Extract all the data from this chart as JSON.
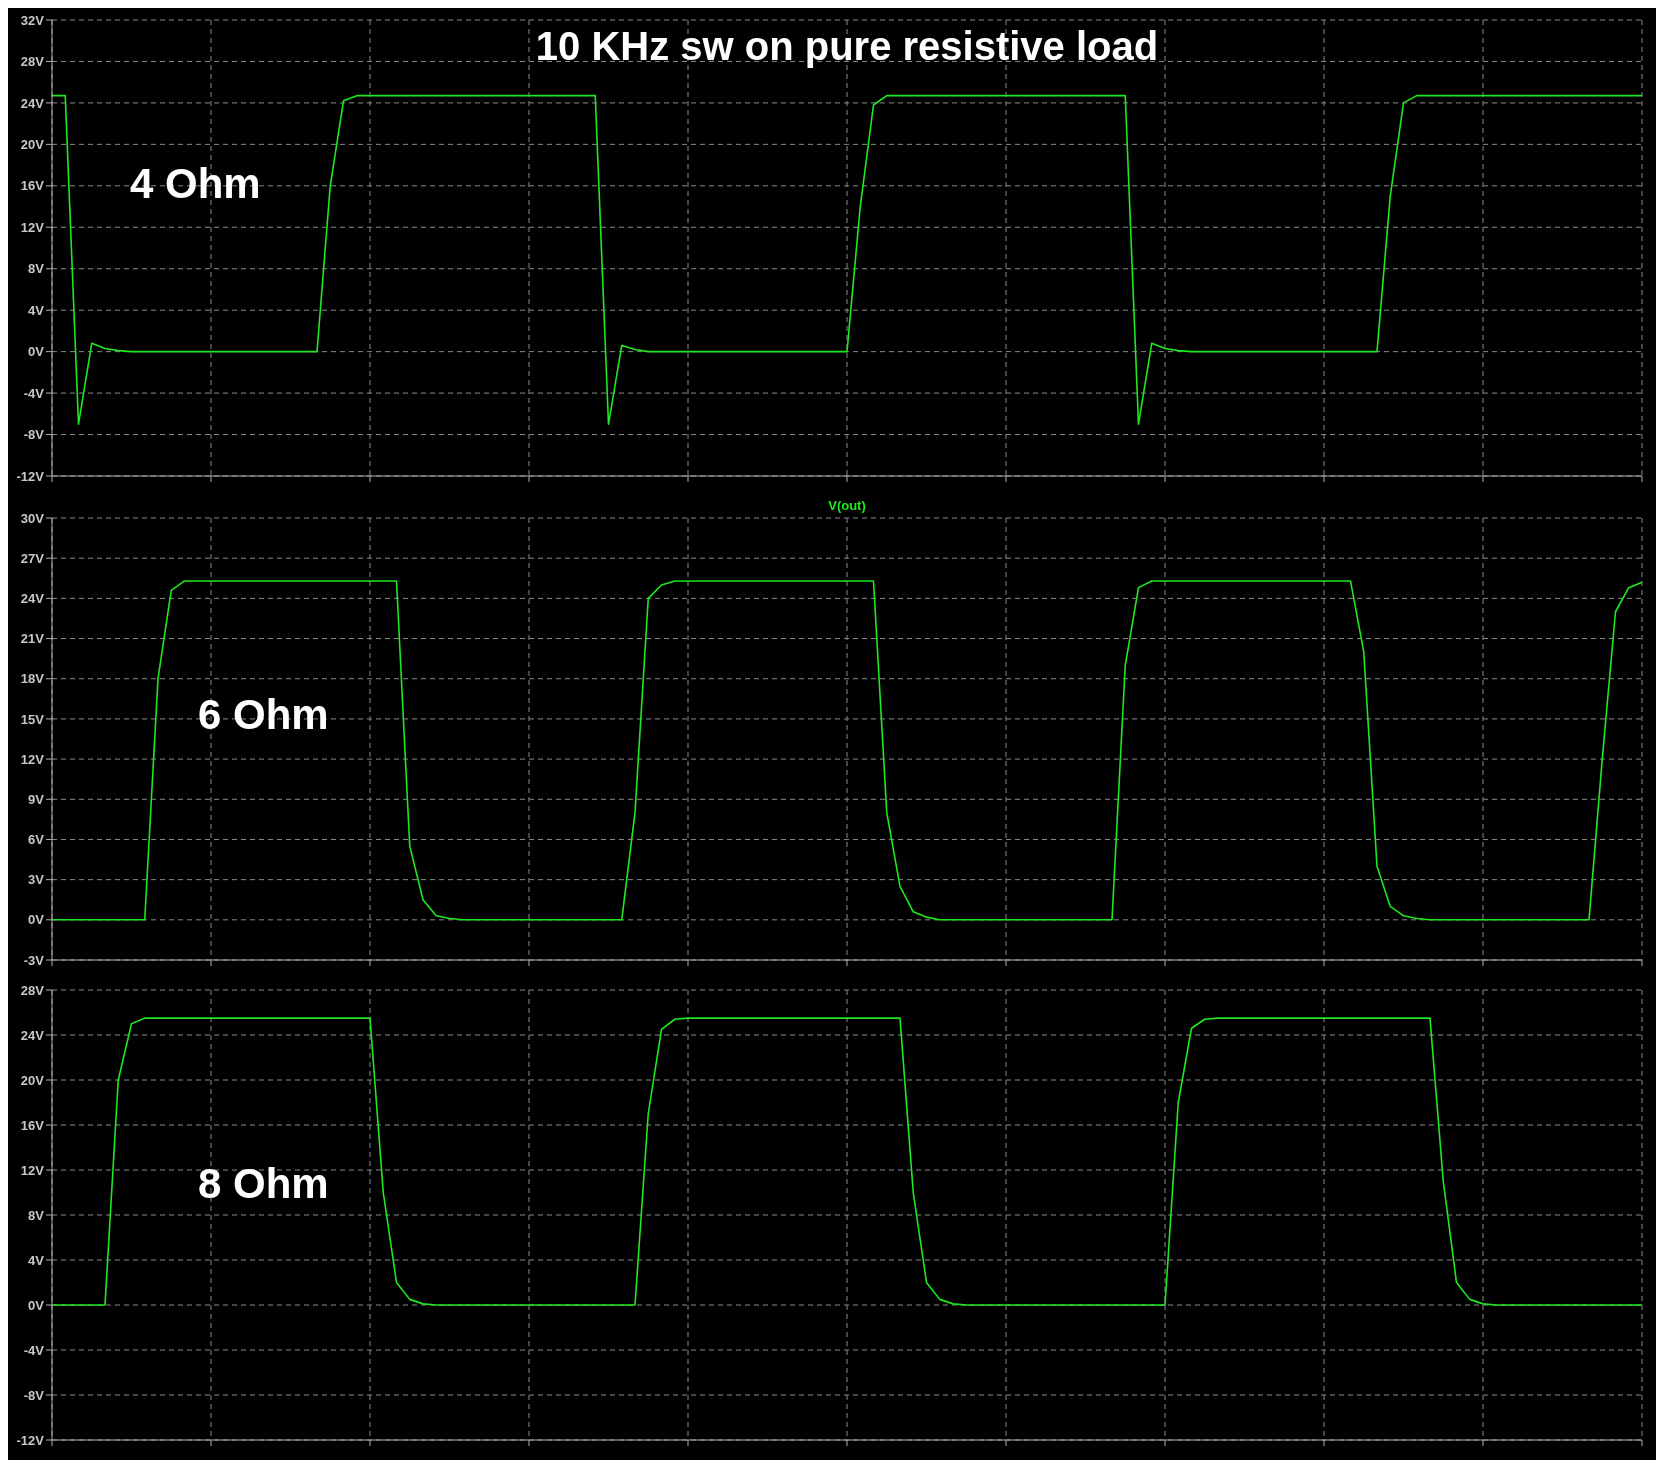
{
  "chart_data": [
    {
      "type": "line",
      "title": "10 KHz sw on pure resistive load",
      "annotations": [
        "4 Ohm"
      ],
      "grid": true,
      "tick_labels": "y",
      "categories": [
        null,
        null,
        null,
        null,
        null,
        null,
        null,
        null,
        null,
        null,
        null,
        null,
        null,
        null,
        null,
        null,
        null,
        null,
        null,
        null,
        null,
        null,
        null,
        null,
        null,
        null,
        null,
        null,
        null,
        null,
        null,
        null,
        null,
        null,
        null,
        null,
        null,
        null,
        null,
        null,
        null,
        null,
        null,
        null,
        null,
        null,
        null,
        null,
        null,
        null,
        null,
        null,
        null,
        null,
        null,
        null,
        null,
        null,
        null,
        null,
        null,
        null,
        null,
        null,
        null,
        null,
        null,
        null,
        null,
        null,
        null,
        null,
        null,
        null,
        null,
        null,
        null,
        null,
        null,
        null,
        null,
        null,
        null,
        null,
        null,
        null,
        null,
        null,
        null,
        null,
        null,
        null,
        null,
        null,
        null,
        null,
        null,
        null,
        null,
        null,
        null,
        null,
        null,
        null,
        null,
        null,
        null,
        null,
        null,
        null,
        null,
        null,
        null,
        null,
        null,
        null,
        null,
        null,
        null,
        null,
        null
      ],
      "ylim": [
        -12,
        32
      ],
      "yticks": [
        {
          "value": -12,
          "label": "-12V"
        },
        {
          "value": -8,
          "label": "-8V"
        },
        {
          "value": -4,
          "label": "-4V"
        },
        {
          "value": 0,
          "label": "0V"
        },
        {
          "value": 4,
          "label": "4V"
        },
        {
          "value": 8,
          "label": "8V"
        },
        {
          "value": 12,
          "label": "12V"
        },
        {
          "value": 16,
          "label": "16V"
        },
        {
          "value": 20,
          "label": "20V"
        },
        {
          "value": 24,
          "label": "24V"
        },
        {
          "value": 28,
          "label": "28V"
        },
        {
          "value": 32,
          "label": "32V"
        }
      ],
      "series": [
        {
          "color": "#1ee81e",
          "values": [
            24.7,
            24.7,
            -7,
            0.8,
            0.3,
            0.1,
            0,
            0,
            0,
            0,
            0,
            0,
            0,
            0,
            0,
            0,
            0,
            0,
            0,
            0,
            0,
            16,
            24.2,
            24.7,
            24.7,
            24.7,
            24.7,
            24.7,
            24.7,
            24.7,
            24.7,
            24.7,
            24.7,
            24.7,
            24.7,
            24.7,
            24.7,
            24.7,
            24.7,
            24.7,
            24.7,
            24.7,
            -7,
            0.6,
            0.2,
            0,
            0,
            0,
            0,
            0,
            0,
            0,
            0,
            0,
            0,
            0,
            0,
            0,
            0,
            0,
            0,
            14,
            23.8,
            24.7,
            24.7,
            24.7,
            24.7,
            24.7,
            24.7,
            24.7,
            24.7,
            24.7,
            24.7,
            24.7,
            24.7,
            24.7,
            24.7,
            24.7,
            24.7,
            24.7,
            24.7,
            24.7,
            -7,
            0.8,
            0.3,
            0.1,
            0,
            0,
            0,
            0,
            0,
            0,
            0,
            0,
            0,
            0,
            0,
            0,
            0,
            0,
            0,
            15,
            24,
            24.7,
            24.7,
            24.7,
            24.7,
            24.7,
            24.7,
            24.7,
            24.7,
            24.7,
            24.7,
            24.7,
            24.7,
            24.7,
            24.7,
            24.7,
            24.7,
            24.7,
            24.7
          ]
        }
      ]
    },
    {
      "type": "line",
      "annotations": [
        "6 Ohm"
      ],
      "grid": true,
      "tick_labels": "y",
      "categories": [
        null,
        null,
        null,
        null,
        null,
        null,
        null,
        null,
        null,
        null,
        null,
        null,
        null,
        null,
        null,
        null,
        null,
        null,
        null,
        null,
        null,
        null,
        null,
        null,
        null,
        null,
        null,
        null,
        null,
        null,
        null,
        null,
        null,
        null,
        null,
        null,
        null,
        null,
        null,
        null,
        null,
        null,
        null,
        null,
        null,
        null,
        null,
        null,
        null,
        null,
        null,
        null,
        null,
        null,
        null,
        null,
        null,
        null,
        null,
        null,
        null,
        null,
        null,
        null,
        null,
        null,
        null,
        null,
        null,
        null,
        null,
        null,
        null,
        null,
        null,
        null,
        null,
        null,
        null,
        null,
        null,
        null,
        null,
        null,
        null,
        null,
        null,
        null,
        null,
        null,
        null,
        null,
        null,
        null,
        null,
        null,
        null,
        null,
        null,
        null,
        null,
        null,
        null,
        null,
        null,
        null,
        null,
        null,
        null,
        null,
        null,
        null,
        null,
        null,
        null,
        null,
        null,
        null,
        null,
        null,
        null
      ],
      "ylim": [
        -3,
        30
      ],
      "yticks": [
        {
          "value": -3,
          "label": "-3V"
        },
        {
          "value": 0,
          "label": "0V"
        },
        {
          "value": 3,
          "label": "3V"
        },
        {
          "value": 6,
          "label": "6V"
        },
        {
          "value": 9,
          "label": "9V"
        },
        {
          "value": 12,
          "label": "12V"
        },
        {
          "value": 15,
          "label": "15V"
        },
        {
          "value": 18,
          "label": "18V"
        },
        {
          "value": 21,
          "label": "21V"
        },
        {
          "value": 24,
          "label": "24V"
        },
        {
          "value": 27,
          "label": "27V"
        },
        {
          "value": 30,
          "label": "30V"
        }
      ],
      "series": [
        {
          "name": "V(out)",
          "color": "#1ee81e",
          "values": [
            0,
            0,
            0,
            0,
            0,
            0,
            0,
            0,
            18,
            24.6,
            25.3,
            25.3,
            25.3,
            25.3,
            25.3,
            25.3,
            25.3,
            25.3,
            25.3,
            25.3,
            25.3,
            25.3,
            25.3,
            25.3,
            25.3,
            25.3,
            25.3,
            5.5,
            1.5,
            0.3,
            0.1,
            0,
            0,
            0,
            0,
            0,
            0,
            0,
            0,
            0,
            0,
            0,
            0,
            0,
            8,
            24,
            25,
            25.3,
            25.3,
            25.3,
            25.3,
            25.3,
            25.3,
            25.3,
            25.3,
            25.3,
            25.3,
            25.3,
            25.3,
            25.3,
            25.3,
            25.3,
            25.3,
            8,
            2.5,
            0.6,
            0.2,
            0,
            0,
            0,
            0,
            0,
            0,
            0,
            0,
            0,
            0,
            0,
            0,
            0,
            0,
            19,
            24.8,
            25.3,
            25.3,
            25.3,
            25.3,
            25.3,
            25.3,
            25.3,
            25.3,
            25.3,
            25.3,
            25.3,
            25.3,
            25.3,
            25.3,
            25.3,
            25.3,
            20,
            4,
            1,
            0.3,
            0.1,
            0,
            0,
            0,
            0,
            0,
            0,
            0,
            0,
            0,
            0,
            0,
            0,
            0,
            12,
            23,
            24.8,
            25.2
          ]
        }
      ]
    },
    {
      "type": "line",
      "annotations": [
        "8 Ohm"
      ],
      "grid": true,
      "tick_labels": "y",
      "categories": [
        null,
        null,
        null,
        null,
        null,
        null,
        null,
        null,
        null,
        null,
        null,
        null,
        null,
        null,
        null,
        null,
        null,
        null,
        null,
        null,
        null,
        null,
        null,
        null,
        null,
        null,
        null,
        null,
        null,
        null,
        null,
        null,
        null,
        null,
        null,
        null,
        null,
        null,
        null,
        null,
        null,
        null,
        null,
        null,
        null,
        null,
        null,
        null,
        null,
        null,
        null,
        null,
        null,
        null,
        null,
        null,
        null,
        null,
        null,
        null,
        null,
        null,
        null,
        null,
        null,
        null,
        null,
        null,
        null,
        null,
        null,
        null,
        null,
        null,
        null,
        null,
        null,
        null,
        null,
        null,
        null,
        null,
        null,
        null,
        null,
        null,
        null,
        null,
        null,
        null,
        null,
        null,
        null,
        null,
        null,
        null,
        null,
        null,
        null,
        null,
        null,
        null,
        null,
        null,
        null,
        null,
        null,
        null,
        null,
        null,
        null,
        null,
        null,
        null,
        null,
        null,
        null,
        null,
        null,
        null,
        null
      ],
      "ylim": [
        -12,
        28
      ],
      "yticks": [
        {
          "value": -12,
          "label": "-12V"
        },
        {
          "value": -8,
          "label": "-8V"
        },
        {
          "value": -4,
          "label": "-4V"
        },
        {
          "value": 0,
          "label": "0V"
        },
        {
          "value": 4,
          "label": "4V"
        },
        {
          "value": 8,
          "label": "8V"
        },
        {
          "value": 12,
          "label": "12V"
        },
        {
          "value": 16,
          "label": "16V"
        },
        {
          "value": 20,
          "label": "20V"
        },
        {
          "value": 24,
          "label": "24V"
        },
        {
          "value": 28,
          "label": "28V"
        }
      ],
      "series": [
        {
          "color": "#1ee81e",
          "values": [
            0,
            0,
            0,
            0,
            0,
            20,
            25,
            25.5,
            25.5,
            25.5,
            25.5,
            25.5,
            25.5,
            25.5,
            25.5,
            25.5,
            25.5,
            25.5,
            25.5,
            25.5,
            25.5,
            25.5,
            25.5,
            25.5,
            25.5,
            10,
            2,
            0.5,
            0.1,
            0,
            0,
            0,
            0,
            0,
            0,
            0,
            0,
            0,
            0,
            0,
            0,
            0,
            0,
            0,
            0,
            17,
            24.5,
            25.4,
            25.5,
            25.5,
            25.5,
            25.5,
            25.5,
            25.5,
            25.5,
            25.5,
            25.5,
            25.5,
            25.5,
            25.5,
            25.5,
            25.5,
            25.5,
            25.5,
            25.5,
            10,
            2,
            0.5,
            0.1,
            0,
            0,
            0,
            0,
            0,
            0,
            0,
            0,
            0,
            0,
            0,
            0,
            0,
            0,
            0,
            0,
            18,
            24.6,
            25.4,
            25.5,
            25.5,
            25.5,
            25.5,
            25.5,
            25.5,
            25.5,
            25.5,
            25.5,
            25.5,
            25.5,
            25.5,
            25.5,
            25.5,
            25.5,
            25.5,
            25.5,
            11,
            2,
            0.5,
            0.1,
            0,
            0,
            0,
            0,
            0,
            0,
            0,
            0,
            0,
            0,
            0,
            0
          ]
        }
      ]
    }
  ]
}
